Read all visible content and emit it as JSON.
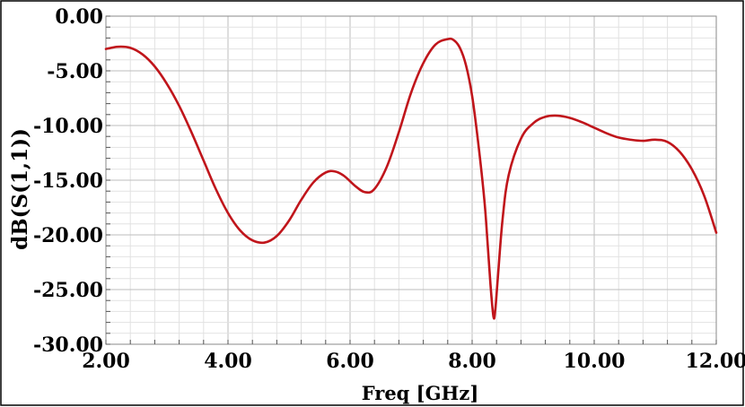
{
  "chart_data": {
    "type": "line",
    "title": "",
    "xlabel": "Freq [GHz]",
    "ylabel": "dB(S(1,1))",
    "xlim": [
      2.0,
      12.0
    ],
    "ylim": [
      -30.0,
      0.0
    ],
    "x_ticks": [
      2,
      4,
      6,
      8,
      10,
      12
    ],
    "x_tick_labels": [
      "2.00",
      "4.00",
      "6.00",
      "8.00",
      "10.00",
      "12.00"
    ],
    "y_ticks": [
      0,
      -5,
      -10,
      -15,
      -20,
      -25,
      -30
    ],
    "y_tick_labels": [
      "0.00",
      "-5.00",
      "-10.00",
      "-15.00",
      "-20.00",
      "-25.00",
      "-30.00"
    ],
    "grid": true,
    "series": [
      {
        "color": "#c0151b",
        "x": [
          2.0,
          2.2,
          2.4,
          2.6,
          2.8,
          3.0,
          3.2,
          3.4,
          3.6,
          3.8,
          4.0,
          4.2,
          4.4,
          4.6,
          4.8,
          5.0,
          5.2,
          5.4,
          5.6,
          5.75,
          5.9,
          6.1,
          6.25,
          6.4,
          6.6,
          6.8,
          7.0,
          7.2,
          7.4,
          7.6,
          7.7,
          7.8,
          7.9,
          8.0,
          8.1,
          8.2,
          8.25,
          8.3,
          8.35,
          8.38,
          8.42,
          8.5,
          8.6,
          8.8,
          9.0,
          9.2,
          9.4,
          9.6,
          9.8,
          10.0,
          10.2,
          10.4,
          10.6,
          10.8,
          11.0,
          11.2,
          11.4,
          11.6,
          11.8,
          12.0
        ],
        "y": [
          -3.0,
          -2.8,
          -2.9,
          -3.5,
          -4.6,
          -6.2,
          -8.2,
          -10.6,
          -13.2,
          -15.8,
          -18.0,
          -19.6,
          -20.5,
          -20.7,
          -20.1,
          -18.7,
          -16.8,
          -15.2,
          -14.3,
          -14.2,
          -14.6,
          -15.6,
          -16.1,
          -15.8,
          -13.8,
          -10.6,
          -7.0,
          -4.3,
          -2.6,
          -2.1,
          -2.2,
          -2.9,
          -4.5,
          -7.3,
          -11.6,
          -16.8,
          -20.5,
          -24.5,
          -27.5,
          -26.8,
          -24.0,
          -18.5,
          -14.5,
          -11.2,
          -9.8,
          -9.2,
          -9.1,
          -9.3,
          -9.7,
          -10.2,
          -10.7,
          -11.1,
          -11.3,
          -11.4,
          -11.3,
          -11.5,
          -12.4,
          -14.0,
          -16.4,
          -19.8
        ]
      }
    ]
  }
}
